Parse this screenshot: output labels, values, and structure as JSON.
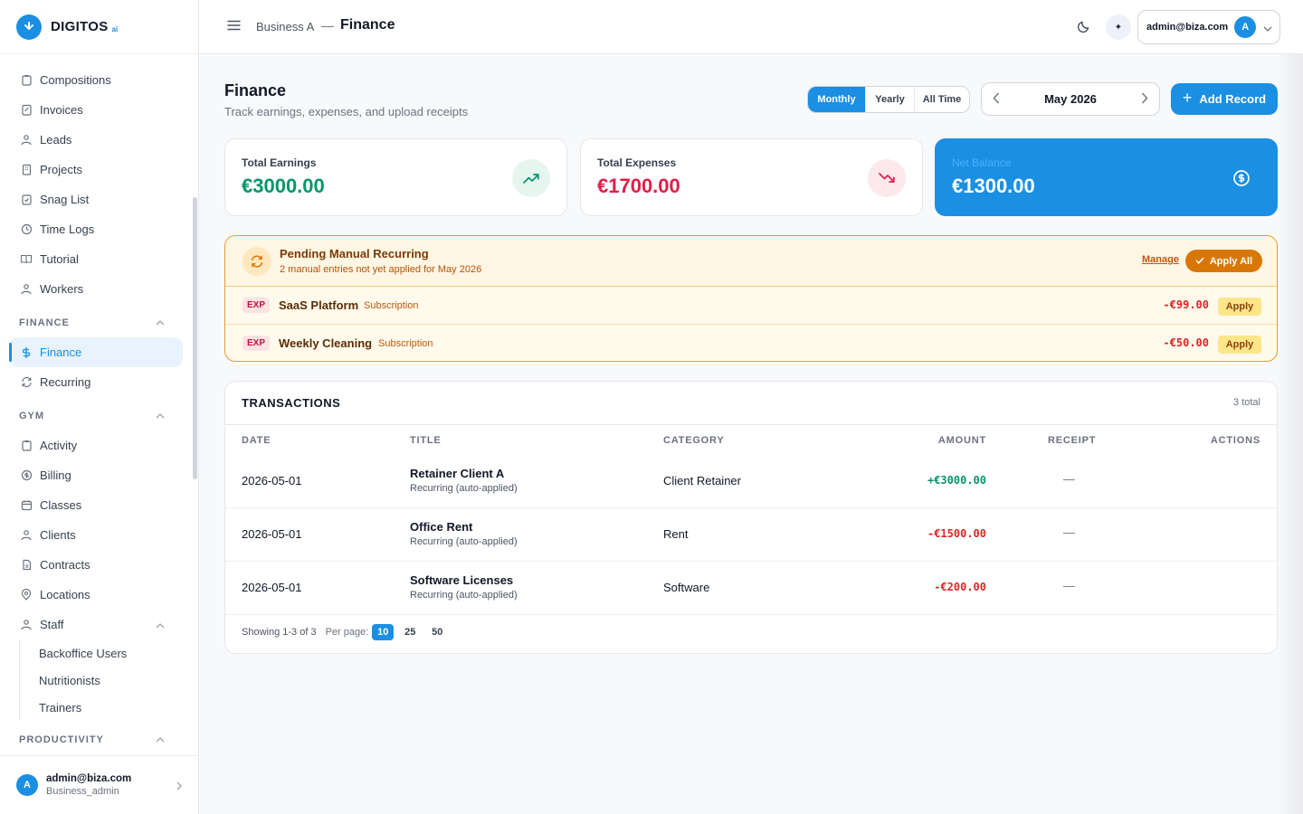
{
  "brand": {
    "name": "DIGITOS",
    "suffix": "ai"
  },
  "sidebar": {
    "items": [
      {
        "label": "Compositions",
        "icon": "clipboard-icon"
      },
      {
        "label": "Invoices",
        "icon": "receipt-icon"
      },
      {
        "label": "Leads",
        "icon": "users-icon"
      },
      {
        "label": "Projects",
        "icon": "building-icon"
      },
      {
        "label": "Snag List",
        "icon": "clipboard-check-icon"
      },
      {
        "label": "Time Logs",
        "icon": "clock-icon"
      },
      {
        "label": "Tutorial",
        "icon": "book-icon"
      },
      {
        "label": "Workers",
        "icon": "users-icon"
      }
    ],
    "finance_section": "FINANCE",
    "finance_items": [
      {
        "label": "Finance",
        "icon": "dollar-icon",
        "active": true
      },
      {
        "label": "Recurring",
        "icon": "refresh-icon"
      }
    ],
    "gym_section": "GYM",
    "gym_items": [
      {
        "label": "Activity",
        "icon": "clipboard-icon"
      },
      {
        "label": "Billing",
        "icon": "dollar-circle-icon"
      },
      {
        "label": "Classes",
        "icon": "calendar-icon"
      },
      {
        "label": "Clients",
        "icon": "users-icon"
      },
      {
        "label": "Contracts",
        "icon": "file-icon"
      },
      {
        "label": "Locations",
        "icon": "map-pin-icon"
      },
      {
        "label": "Staff",
        "icon": "users-icon"
      }
    ],
    "staff_sub": [
      "Backoffice Users",
      "Nutritionists",
      "Trainers"
    ],
    "productivity_section": "PRODUCTIVITY",
    "user": {
      "email": "admin@biza.com",
      "role": "Business_admin",
      "initial": "A"
    }
  },
  "topbar": {
    "breadcrumb_parent": "Business A",
    "breadcrumb_sep": "—",
    "breadcrumb_current": "Finance",
    "account_email": "admin@biza.com",
    "account_initial": "A"
  },
  "page": {
    "title": "Finance",
    "subtitle": "Track earnings, expenses, and upload receipts",
    "periods": [
      "Monthly",
      "Yearly",
      "All Time"
    ],
    "active_period": "Monthly",
    "month": "May 2026",
    "add_label": "Add Record"
  },
  "cards": {
    "earnings": {
      "label": "Total Earnings",
      "value": "€3000.00",
      "color": "#059669"
    },
    "expenses": {
      "label": "Total Expenses",
      "value": "€1700.00",
      "color": "#e11d48"
    },
    "net": {
      "label": "Net Balance",
      "value": "€1300.00"
    }
  },
  "pending": {
    "title": "Pending Manual Recurring",
    "subtitle": "2 manual entries not yet applied for May 2026",
    "manage_label": "Manage",
    "apply_all_label": "Apply All",
    "rows": [
      {
        "type": "EXP",
        "name": "SaaS Platform",
        "tag": "Subscription",
        "amount": "-€99.00",
        "apply": "Apply"
      },
      {
        "type": "EXP",
        "name": "Weekly Cleaning",
        "tag": "Subscription",
        "amount": "-€50.00",
        "apply": "Apply"
      }
    ]
  },
  "transactions": {
    "title": "TRANSACTIONS",
    "total": "3 total",
    "columns": [
      "DATE",
      "TITLE",
      "CATEGORY",
      "AMOUNT",
      "RECEIPT",
      "ACTIONS"
    ],
    "rows": [
      {
        "date": "2026-05-01",
        "title": "Retainer Client A",
        "sub": "Recurring (auto-applied)",
        "category": "Client Retainer",
        "amount": "+€3000.00",
        "receipt": "—"
      },
      {
        "date": "2026-05-01",
        "title": "Office Rent",
        "sub": "Recurring (auto-applied)",
        "category": "Rent",
        "amount": "-€1500.00",
        "receipt": "—"
      },
      {
        "date": "2026-05-01",
        "title": "Software Licenses",
        "sub": "Recurring (auto-applied)",
        "category": "Software",
        "amount": "-€200.00",
        "receipt": "—"
      }
    ],
    "showing": "Showing 1-3 of 3",
    "per_page_label": "Per page:",
    "per_page_options": [
      "10",
      "25",
      "50"
    ],
    "per_page_selected": "10"
  },
  "colors": {
    "accent": "#1a8fe3",
    "positive": "#059669",
    "negative": "#dc2626",
    "warning": "#d97706"
  }
}
